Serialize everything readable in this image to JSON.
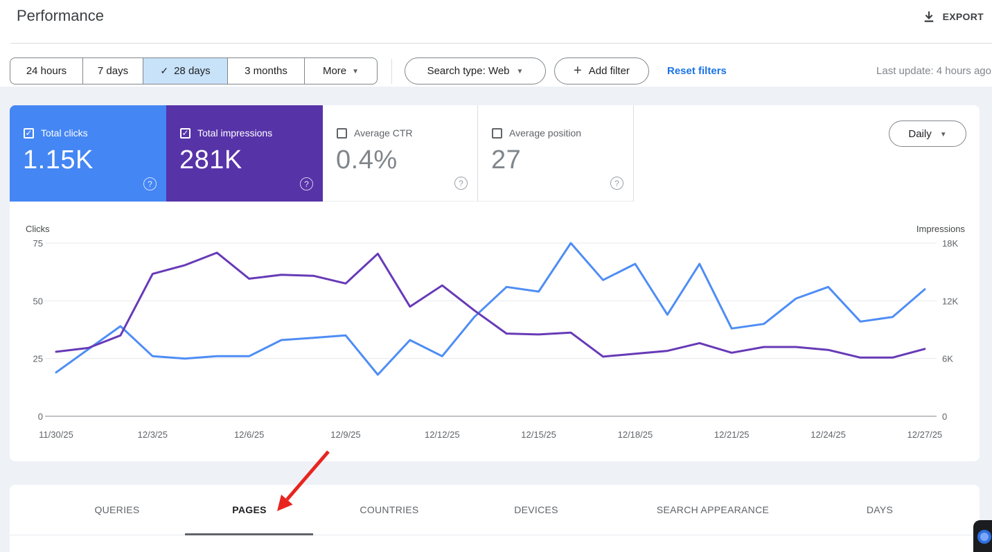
{
  "header": {
    "title": "Performance",
    "export_label": "EXPORT"
  },
  "filters": {
    "date_ranges": [
      {
        "label": "24 hours",
        "selected": false
      },
      {
        "label": "7 days",
        "selected": false
      },
      {
        "label": "28 days",
        "selected": true
      },
      {
        "label": "3 months",
        "selected": false
      },
      {
        "label": "More",
        "selected": false
      }
    ],
    "search_type_label": "Search type: Web",
    "add_filter_label": "Add filter",
    "reset_label": "Reset filters",
    "last_update": "Last update: 4 hours ago"
  },
  "metrics": {
    "cards": [
      {
        "label": "Total clicks",
        "value": "1.15K",
        "checked": true,
        "color": "#4486f4"
      },
      {
        "label": "Total impressions",
        "value": "281K",
        "checked": true,
        "color": "#5733a8"
      },
      {
        "label": "Average CTR",
        "value": "0.4%",
        "checked": false
      },
      {
        "label": "Average position",
        "value": "27",
        "checked": false
      }
    ],
    "granularity_label": "Daily"
  },
  "chart_data": {
    "type": "line",
    "title": "",
    "x": [
      "11/30/25",
      "12/1/25",
      "12/2/25",
      "12/3/25",
      "12/4/25",
      "12/5/25",
      "12/6/25",
      "12/7/25",
      "12/8/25",
      "12/9/25",
      "12/10/25",
      "12/11/25",
      "12/12/25",
      "12/13/25",
      "12/14/25",
      "12/15/25",
      "12/16/25",
      "12/17/25",
      "12/18/25",
      "12/19/25",
      "12/20/25",
      "12/21/25",
      "12/22/25",
      "12/23/25",
      "12/24/25",
      "12/25/25",
      "12/26/25",
      "12/27/25"
    ],
    "series": [
      {
        "name": "Clicks",
        "axis": "left",
        "color": "#4e8df5",
        "values": [
          19,
          29,
          39,
          26,
          25,
          26,
          26,
          33,
          34,
          35,
          18,
          33,
          26,
          43,
          56,
          54,
          75,
          59,
          66,
          44,
          66,
          38,
          40,
          51,
          56,
          41,
          43,
          55
        ]
      },
      {
        "name": "Impressions",
        "axis": "right",
        "color": "#673ab7",
        "values": [
          6700,
          7100,
          8400,
          14800,
          15700,
          17000,
          14300,
          14700,
          14600,
          13800,
          16900,
          11400,
          13600,
          11000,
          8600,
          8500,
          8700,
          6200,
          6500,
          6800,
          7600,
          6600,
          7200,
          7200,
          6900,
          6100,
          6100,
          7000
        ]
      }
    ],
    "left_axis": {
      "label": "Clicks",
      "ticks": [
        0,
        25,
        50,
        75
      ],
      "tick_labels": [
        "0",
        "25",
        "50",
        "75"
      ],
      "max": 75
    },
    "right_axis": {
      "label": "Impressions",
      "ticks": [
        0,
        6000,
        12000,
        18000
      ],
      "tick_labels": [
        "0",
        "6K",
        "12K",
        "18K"
      ],
      "max": 18000
    },
    "xtick_indices": [
      0,
      3,
      6,
      9,
      12,
      15,
      18,
      21,
      24,
      27
    ],
    "grid": true,
    "legend": "none"
  },
  "tabs": {
    "items": [
      {
        "label": "QUERIES",
        "active": false
      },
      {
        "label": "PAGES",
        "active": true
      },
      {
        "label": "COUNTRIES",
        "active": false
      },
      {
        "label": "DEVICES",
        "active": false
      },
      {
        "label": "SEARCH APPEARANCE",
        "active": false
      },
      {
        "label": "DAYS",
        "active": false
      }
    ]
  },
  "appearance": {
    "accent": "#1a73e8",
    "arrow": "#e8251f",
    "selected_chip_bg": "#c8e2f9",
    "clicks_color": "#4486f4",
    "impressions_color": "#5733a8"
  }
}
